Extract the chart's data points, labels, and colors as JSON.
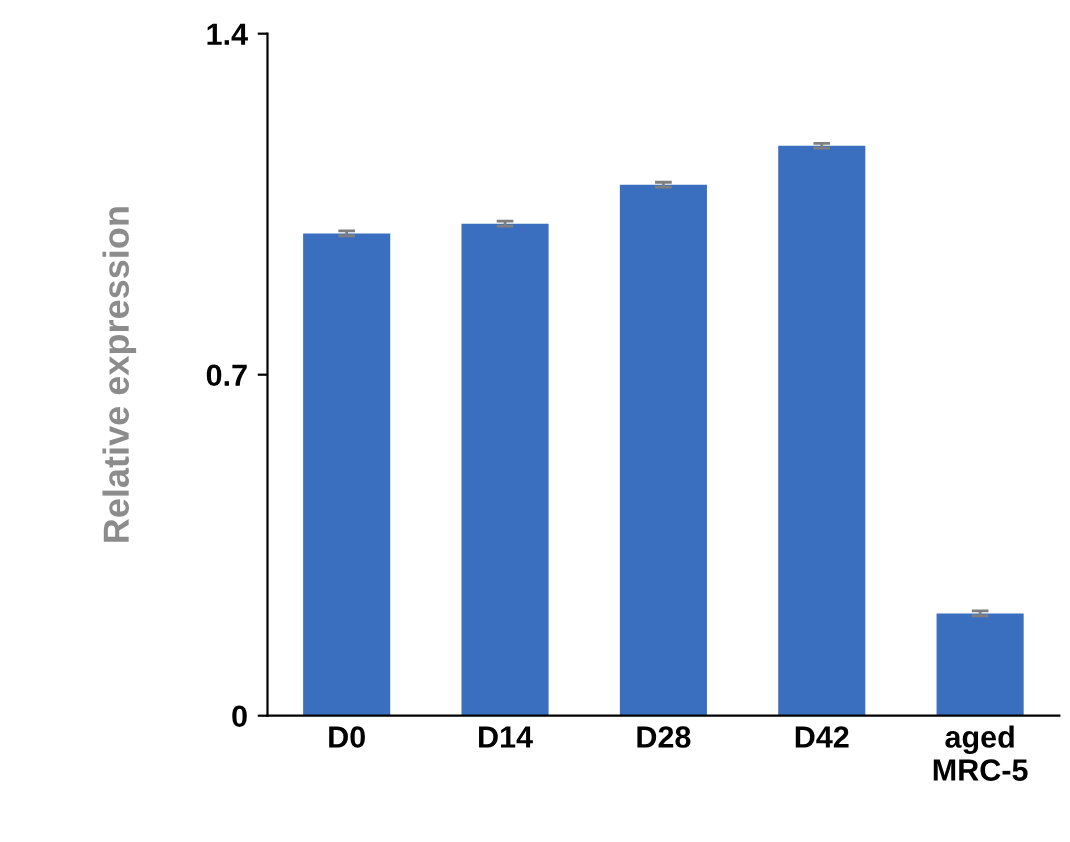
{
  "chart_data": {
    "type": "bar",
    "ylabel": "Relative expression",
    "categories": [
      "D0",
      "D14",
      "D28",
      "D42",
      "aged\nMRC-5"
    ],
    "values": [
      0.99,
      1.01,
      1.09,
      1.17,
      0.21
    ],
    "errors": [
      0.005,
      0.005,
      0.005,
      0.005,
      0.005
    ],
    "color": "#3a6fbf",
    "ylim": [
      0,
      1.4
    ],
    "yticks": [
      0,
      0.7,
      1.4
    ],
    "grid": false
  }
}
